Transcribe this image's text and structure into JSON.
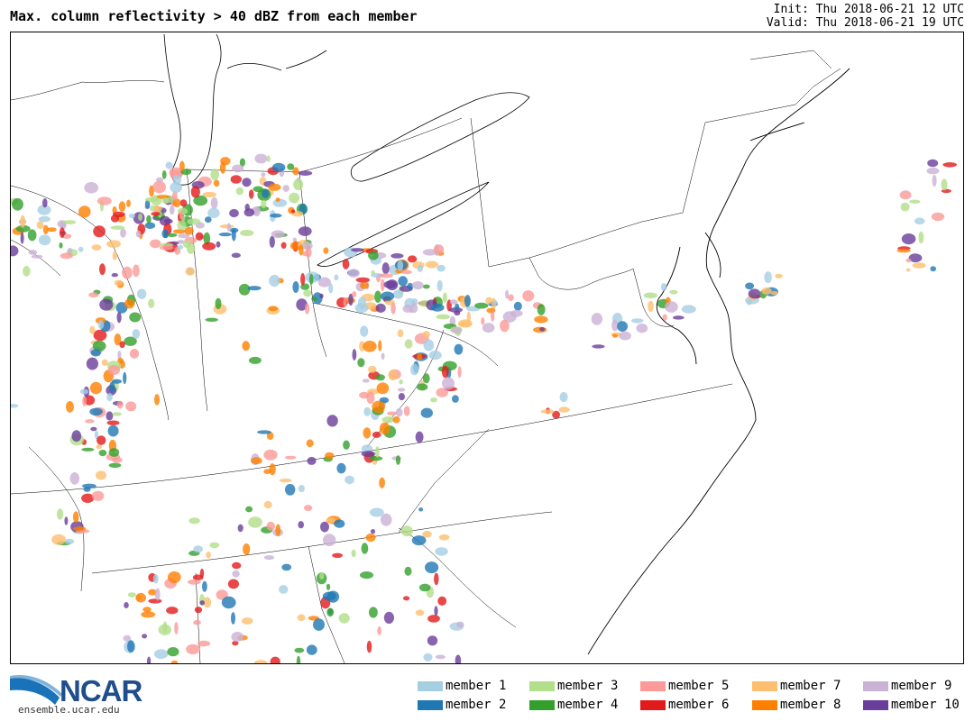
{
  "header": {
    "title": "Max. column reflectivity > 40 dBZ from each member",
    "init_line": "Init: Thu 2018-06-21 12 UTC",
    "valid_line": "Valid: Thu 2018-06-21 19 UTC"
  },
  "footer": {
    "logo_text": "NCAR",
    "logo_url": "ensemble.ucar.edu"
  },
  "legend": {
    "items": [
      {
        "label": "member 1",
        "color": "#a6cee3"
      },
      {
        "label": "member 2",
        "color": "#1f78b4"
      },
      {
        "label": "member 3",
        "color": "#b2df8a"
      },
      {
        "label": "member 4",
        "color": "#33a02c"
      },
      {
        "label": "member 5",
        "color": "#fb9a99"
      },
      {
        "label": "member 6",
        "color": "#e31a1c"
      },
      {
        "label": "member 7",
        "color": "#fdbf6f"
      },
      {
        "label": "member 8",
        "color": "#ff7f00"
      },
      {
        "label": "member 9",
        "color": "#cab2d6"
      },
      {
        "label": "member 10",
        "color": "#6a3d9a"
      }
    ]
  }
}
